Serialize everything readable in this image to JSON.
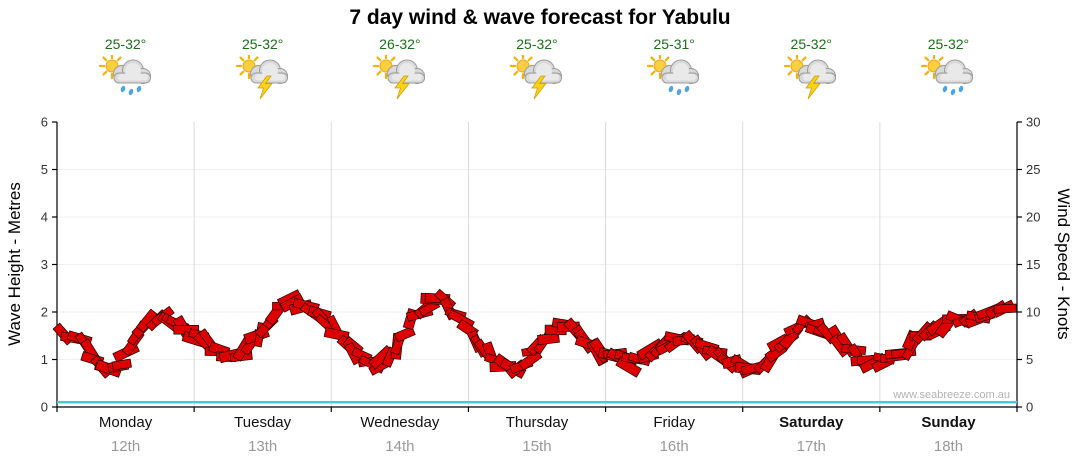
{
  "title": "7 day wind & wave forecast for Yabulu",
  "watermark": "www.seabreeze.com.au",
  "colors": {
    "wind": "#dd0000",
    "wind_outline": "#220000",
    "wave": "#4cc8d9",
    "temperature_text": "#1a6e1a",
    "day_grid": "#dcdcdc",
    "hgrid": "#efefef",
    "axis": "#000000",
    "tick_text": "#333333",
    "date_text": "#999999",
    "watermark_text": "#b3b3b3"
  },
  "days": [
    {
      "name": "Monday",
      "date": "12th",
      "temp": "25-32°",
      "icon": "sun-cloud-rain",
      "bold": false
    },
    {
      "name": "Tuesday",
      "date": "13th",
      "temp": "25-32°",
      "icon": "storm",
      "bold": false
    },
    {
      "name": "Wednesday",
      "date": "14th",
      "temp": "26-32°",
      "icon": "storm",
      "bold": false
    },
    {
      "name": "Thursday",
      "date": "15th",
      "temp": "25-32°",
      "icon": "storm",
      "bold": false
    },
    {
      "name": "Friday",
      "date": "16th",
      "temp": "25-31°",
      "icon": "sun-cloud-rain",
      "bold": false
    },
    {
      "name": "Saturday",
      "date": "17th",
      "temp": "25-32°",
      "icon": "storm",
      "bold": true
    },
    {
      "name": "Sunday",
      "date": "18th",
      "temp": "25-32°",
      "icon": "sun-cloud-rain",
      "bold": true
    }
  ],
  "chart_data": {
    "type": "line",
    "title": "7 day wind & wave forecast for Yabulu",
    "x_categories": [
      "Monday 12th",
      "Tuesday 13th",
      "Wednesday 14th",
      "Thursday 15th",
      "Friday 16th",
      "Saturday 17th",
      "Sunday 18th"
    ],
    "samples_per_day": 8,
    "left_axis": {
      "label": "Wave Height - Metres",
      "min": 0,
      "max": 6,
      "step": 1,
      "ticks": [
        0,
        1,
        2,
        3,
        4,
        5,
        6
      ]
    },
    "right_axis": {
      "label": "Wind Speed - Knots",
      "min": 0,
      "max": 30,
      "step": 5,
      "ticks": [
        0,
        5,
        10,
        15,
        20,
        25,
        30
      ]
    },
    "legend": "off",
    "grid": "light vertical day separators",
    "series": [
      {
        "name": "Wind Speed",
        "units": "knots",
        "axis": "right",
        "color": "#dd0000",
        "style": "wind-barbs",
        "values": [
          8,
          6.5,
          4.5,
          4,
          7,
          9.5,
          9,
          8,
          7,
          6,
          5,
          7,
          9.5,
          11,
          10.5,
          9,
          7.5,
          5.5,
          4,
          5.5,
          8.5,
          10.5,
          11.5,
          9.5,
          6.5,
          5,
          4,
          5,
          7,
          8.5,
          7.5,
          6,
          5.5,
          4.5,
          5.5,
          6.5,
          7,
          6.5,
          5.5,
          4.5,
          4,
          5,
          7,
          9,
          8,
          7,
          5.5,
          4.5,
          5,
          6,
          7.5,
          8.5,
          9.5,
          9,
          10,
          10.5
        ]
      },
      {
        "name": "Wave Height",
        "units": "metres",
        "axis": "left",
        "color": "#4cc8d9",
        "style": "line",
        "values": [
          0.1,
          0.1,
          0.1,
          0.1,
          0.1,
          0.1,
          0.1,
          0.1
        ]
      }
    ]
  }
}
